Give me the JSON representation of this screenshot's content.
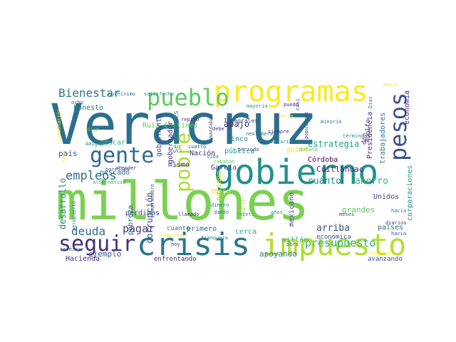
{
  "words": [
    {
      "text": "Veracruz",
      "color": "#2c6e8e"
    },
    {
      "text": "millones",
      "color": "#7ad151"
    },
    {
      "text": "gobierno",
      "color": "#21918c"
    },
    {
      "text": "programas",
      "color": "#fde725"
    },
    {
      "text": "crisis",
      "color": "#2a788e"
    },
    {
      "text": "impuesto",
      "color": "#b5de2b"
    },
    {
      "text": "pueblo",
      "color": "#5ec962"
    },
    {
      "text": "gente",
      "color": "#31688e"
    },
    {
      "text": "pesos",
      "color": "#3b528b"
    },
    {
      "text": "seguir",
      "color": "#472d7b"
    },
    {
      "text": "pobre",
      "color": "#addc30"
    },
    {
      "text": "Bienestar",
      "color": "#2a788e"
    },
    {
      "text": "empleos",
      "color": "#2f6b8e"
    },
    {
      "text": "deuda",
      "color": "#31688e"
    },
    {
      "text": "pagar",
      "color": "#443983"
    },
    {
      "text": "presupuesto",
      "color": "#29af7f"
    },
    {
      "text": "estrategia",
      "color": "#22a884"
    },
    {
      "text": "ahorro",
      "color": "#35b779"
    },
    {
      "text": "cuánto",
      "color": "#21918c"
    },
    {
      "text": "arriba",
      "color": "#3b528b"
    },
    {
      "text": "grandes",
      "color": "#5ec962"
    },
    {
      "text": "apoyando",
      "color": "#2a788e"
    },
    {
      "text": "ejemplo",
      "color": "#3b528b"
    },
    {
      "text": "Hacienda",
      "color": "#472d7b"
    },
    {
      "text": "corrupción",
      "color": "#3e4989"
    },
    {
      "text": "desarrollo",
      "color": "#26828e"
    },
    {
      "text": "Córdoba",
      "color": "#440154"
    },
    {
      "text": "Cuitláhuac",
      "color": "#482173"
    },
    {
      "text": "Unidos",
      "color": "#3e4989"
    },
    {
      "text": "países",
      "color": "#2c728e"
    },
    {
      "text": "mexicano",
      "color": "#414487"
    },
    {
      "text": "Nación",
      "color": "#472d7b"
    },
    {
      "text": "García",
      "color": "#433e85"
    },
    {
      "text": "abajo",
      "color": "#482878"
    },
    {
      "text": "cinco",
      "color": "#26828e"
    },
    {
      "text": "pública",
      "color": "#1f9e89"
    },
    {
      "text": "país",
      "color": "#3b528b"
    },
    {
      "text": "pescado",
      "color": "#2c728e"
    },
    {
      "text": "pescar",
      "color": "#35b779"
    },
    {
      "text": "honesto",
      "color": "#2a788e"
    },
    {
      "text": "Ruiz Cortines",
      "color": "#5ec962"
    },
    {
      "text": "gobernante",
      "color": "#3e4989"
    },
    {
      "text": "gobernador",
      "color": "#46327e"
    },
    {
      "text": "Servidores",
      "color": "#21918c"
    },
    {
      "text": "mismo",
      "color": "#443983"
    },
    {
      "text": "primero",
      "color": "#31688e"
    },
    {
      "text": "cerca",
      "color": "#25ac82"
    },
    {
      "text": "millón",
      "color": "#22a884"
    },
    {
      "text": "económica",
      "color": "#3b528b"
    },
    {
      "text": "enfrentando",
      "color": "#482878"
    },
    {
      "text": "avanzando",
      "color": "#3b528b"
    },
    {
      "text": "gusto",
      "color": "#fde725"
    },
    {
      "text": "Presidencia",
      "color": "#46337e"
    },
    {
      "text": "trabajadores",
      "color": "#2a788e"
    },
    {
      "text": "economía",
      "color": "#472d7b"
    },
    {
      "text": "corporaciones",
      "color": "#21918c"
    },
    {
      "text": "perdimos",
      "color": "#3e4989"
    },
    {
      "text": "pobreza",
      "color": "#31688e"
    },
    {
      "text": "cuanto",
      "color": "#2c728e"
    },
    {
      "text": "paisano",
      "color": "#b5de2b"
    },
    {
      "text": "dueño",
      "color": "#d2e21b"
    },
    {
      "text": "Adolfo",
      "color": "#3e4989"
    },
    {
      "text": "don",
      "color": "#482878"
    },
    {
      "text": "Integrales",
      "color": "#3b528b"
    },
    {
      "text": "muchísimo",
      "color": "#2c728e"
    },
    {
      "text": "satisfecho",
      "color": "#21918c"
    },
    {
      "text": "ocho",
      "color": "#3b528b"
    },
    {
      "text": "dije",
      "color": "#5ec962"
    },
    {
      "text": "Amigas",
      "color": "#25858e"
    },
    {
      "text": "atender",
      "color": "#482878"
    },
    {
      "text": "alternativa",
      "color": "#25ac82"
    },
    {
      "text": "barriles",
      "color": "#3b528b"
    },
    {
      "text": "aeropuerto",
      "color": "#2a788e"
    },
    {
      "text": "septiembre",
      "color": "#31688e"
    },
    {
      "text": "llamado",
      "color": "#482878"
    },
    {
      "text": "dando",
      "color": "#2c728e"
    },
    {
      "text": "dinero",
      "color": "#26828e"
    },
    {
      "text": "repetí",
      "color": "#29af7f"
    },
    {
      "text": "salir",
      "color": "#a0da39"
    },
    {
      "text": "años",
      "color": "#21918c"
    },
    {
      "text": "obra",
      "color": "#3b528b"
    },
    {
      "text": "financiera",
      "color": "#fde725"
    },
    {
      "text": "meses",
      "color": "#3e4989"
    },
    {
      "text": "hacía",
      "color": "#2c728e"
    },
    {
      "text": "diarios",
      "color": "#472d7b"
    },
    {
      "text": "hacia",
      "color": "#3b528b"
    },
    {
      "text": "Créditos",
      "color": "#fde725"
    },
    {
      "text": "terminar",
      "color": "#2c728e"
    },
    {
      "text": "hoy",
      "color": "#443983"
    },
    {
      "text": "empresas",
      "color": "#fde725"
    },
    {
      "text": "franqueza",
      "color": "#2a788e"
    },
    {
      "text": "periodo",
      "color": "#3b528b"
    },
    {
      "text": "vida",
      "color": "#21918c"
    },
    {
      "text": "robaban",
      "color": "#5ec962"
    },
    {
      "text": "cuatro",
      "color": "#3b528b"
    },
    {
      "text": "repito",
      "color": "#482878"
    },
    {
      "text": "mandaban",
      "color": "#3b528b"
    },
    {
      "text": "debe",
      "color": "#46327e"
    },
    {
      "text": "mayoría",
      "color": "#21918c"
    },
    {
      "text": "puedo",
      "color": "#472d7b"
    },
    {
      "text": "veces",
      "color": "#fde725"
    },
    {
      "text": "casi",
      "color": "#3e4989"
    },
    {
      "text": "minoría",
      "color": "#2c728e"
    },
    {
      "text": "siempre",
      "color": "#482878"
    },
    {
      "text": "neoliberal",
      "color": "#31688e"
    },
    {
      "text": "sanitaria",
      "color": "#21918c"
    },
    {
      "text": "mañana",
      "color": "#5ec962"
    },
    {
      "text": "menos",
      "color": "#fde725"
    },
    {
      "text": "término",
      "color": "#21918c"
    },
    {
      "text": "condonación",
      "color": "#fde725"
    },
    {
      "text": "populismo",
      "color": "#3e4989"
    },
    {
      "text": "Díaz",
      "color": "#2a788e"
    },
    {
      "text": "Pasar",
      "color": "#fde725"
    }
  ]
}
